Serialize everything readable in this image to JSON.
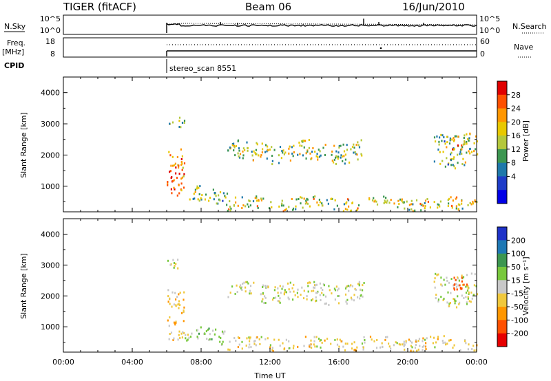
{
  "header": {
    "radar": "TIGER (fitACF)",
    "beam": "Beam 06",
    "date": "16/Jun/2010"
  },
  "strips": {
    "nsky_label": "N.Sky",
    "nsearch_label": "N.Search",
    "nsky_ticks": [
      "10^5",
      "10^0"
    ],
    "nsearch_ticks": [
      "10^5",
      "10^0"
    ],
    "freq_label_1": "Freq.",
    "freq_label_2": "[MHz]",
    "freq_ticks": [
      "18",
      "8"
    ],
    "nave_label": "Nave",
    "nave_ticks": [
      "60",
      "0"
    ],
    "cpid_label": "CPID",
    "cpid_value": "stereo_scan 8551",
    "start_hour": 6
  },
  "axes": {
    "x_ticks": [
      "00:00",
      "04:00",
      "08:00",
      "12:00",
      "16:00",
      "20:00",
      "00:00"
    ],
    "x_label": "Time UT",
    "y_label": "Slant Range [km]",
    "y_ticks": [
      "4000",
      "3000",
      "2000",
      "1000"
    ]
  },
  "power_scale": {
    "label": "Power [dB]",
    "ticks": [
      "28",
      "24",
      "20",
      "16",
      "12",
      "8",
      "4"
    ],
    "colors": [
      "#e00000",
      "#ff5000",
      "#ff9600",
      "#e8c800",
      "#b4c83c",
      "#3c9650",
      "#1e78aa",
      "#1e3cc8",
      "#0000e6"
    ]
  },
  "velocity_scale": {
    "label": "Velocity [m s⁻¹]",
    "ticks": [
      "200",
      "100",
      "50",
      "15",
      "-15",
      "-50",
      "-100",
      "-200"
    ],
    "colors": [
      "#1e32c8",
      "#1e78b4",
      "#3c9650",
      "#78c83c",
      "#c8c8c8",
      "#f0c83c",
      "#ff9600",
      "#ff5000",
      "#e60000"
    ]
  },
  "chart_data": {
    "type": "heatmap",
    "x_range_hours": [
      0,
      24
    ],
    "y_range_km": [
      180,
      4500
    ],
    "data_start_hour": 6,
    "panels": [
      "power",
      "velocity"
    ],
    "regions": [
      {
        "t": [
          6.0,
          7.0
        ],
        "r": [
          600,
          2600
        ],
        "power": 26,
        "velocity": -30
      },
      {
        "t": [
          7.0,
          9.5
        ],
        "r": [
          400,
          1000
        ],
        "power": 14,
        "velocity": 20
      },
      {
        "t": [
          9.5,
          24.0
        ],
        "r": [
          200,
          700
        ],
        "power": 18,
        "velocity": -20
      },
      {
        "t": [
          9.5,
          17.5
        ],
        "r": [
          1700,
          2500
        ],
        "power": 16,
        "velocity": 0
      },
      {
        "t": [
          21.5,
          24.0
        ],
        "r": [
          1600,
          2900
        ],
        "power": 14,
        "velocity": 0
      },
      {
        "t": [
          22.5,
          23.5
        ],
        "r": [
          2100,
          2700
        ],
        "power": 26,
        "velocity": -150
      },
      {
        "t": [
          6.0,
          7.0
        ],
        "r": [
          2900,
          3300
        ],
        "power": 12,
        "velocity": 0
      }
    ]
  }
}
